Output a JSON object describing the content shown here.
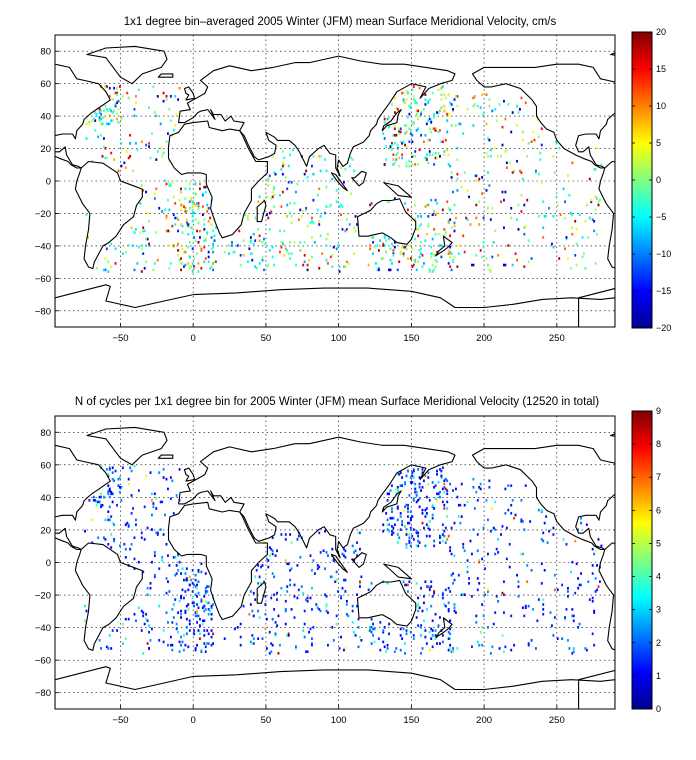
{
  "chart_data": [
    {
      "type": "heatmap",
      "title": "1x1 degree bin–averaged 2005 Winter (JFM) mean Surface Meridional Velocity, cm/s",
      "xlim": [
        -95,
        290
      ],
      "ylim": [
        -90,
        90
      ],
      "x_ticks": [
        -50,
        0,
        50,
        100,
        150,
        200,
        250
      ],
      "y_ticks": [
        -80,
        -60,
        -40,
        -20,
        0,
        20,
        40,
        60,
        80
      ],
      "grid": true,
      "colormap": "jet",
      "colorbar": {
        "range": [
          -20,
          20
        ],
        "ticks": [
          20,
          15,
          10,
          5,
          0,
          -5,
          -10,
          -15,
          -20
        ],
        "placement": "right"
      }
    },
    {
      "type": "heatmap",
      "title": "N of cycles per 1x1 degree bin for 2005 Winter (JFM) mean Surface Meridional Velocity (12520 in total)",
      "xlim": [
        -95,
        290
      ],
      "ylim": [
        -90,
        90
      ],
      "x_ticks": [
        -50,
        0,
        50,
        100,
        150,
        200,
        250
      ],
      "y_ticks": [
        -80,
        -60,
        -40,
        -20,
        0,
        20,
        40,
        60,
        80
      ],
      "grid": true,
      "colormap": "jet",
      "colorbar": {
        "range": [
          0,
          9
        ],
        "ticks": [
          9,
          8,
          7,
          6,
          5,
          4,
          3,
          2,
          1,
          0
        ],
        "placement": "right"
      }
    }
  ]
}
